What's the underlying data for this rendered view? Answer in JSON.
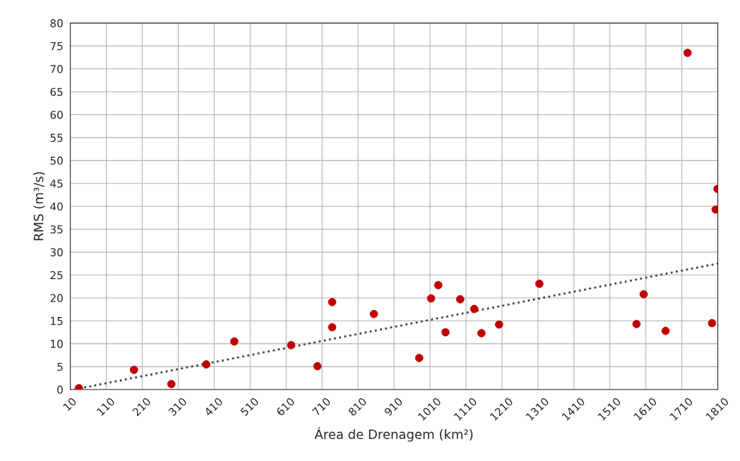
{
  "chart_data": {
    "type": "scatter",
    "xlabel": "Área de Drenagem (km²)",
    "ylabel": "RMS (m³/s)",
    "xlim": [
      10,
      1810
    ],
    "ylim": [
      0,
      80
    ],
    "xticks": [
      10,
      110,
      210,
      310,
      410,
      510,
      610,
      710,
      810,
      910,
      1010,
      1110,
      1210,
      1310,
      1410,
      1510,
      1610,
      1710,
      1810
    ],
    "yticks": [
      0,
      5,
      10,
      15,
      20,
      25,
      30,
      35,
      40,
      45,
      50,
      55,
      60,
      65,
      70,
      75,
      80
    ],
    "grid": true,
    "legend": false,
    "marker": "circle",
    "series": [
      {
        "color": "#c00000",
        "x": [
          34,
          187,
          291,
          388,
          466,
          624,
          697,
          738,
          738,
          854,
          980,
          1013,
          1033,
          1053,
          1094,
          1133,
          1153,
          1202,
          1314,
          1584,
          1604,
          1665,
          1726,
          1794,
          1804,
          1809
        ],
        "values": [
          0.3,
          4.3,
          1.2,
          5.5,
          10.5,
          9.7,
          5.1,
          19.1,
          13.6,
          16.5,
          6.9,
          19.9,
          22.8,
          12.5,
          19.7,
          17.6,
          12.3,
          14.2,
          23.1,
          14.3,
          20.8,
          12.8,
          73.5,
          14.5,
          39.3,
          43.8
        ]
      },
      {
        "type": "line",
        "marker": "none",
        "line_style": "dotted",
        "color": "#404040",
        "x": [
          20,
          1810
        ],
        "values": [
          0,
          27.5
        ]
      }
    ]
  }
}
